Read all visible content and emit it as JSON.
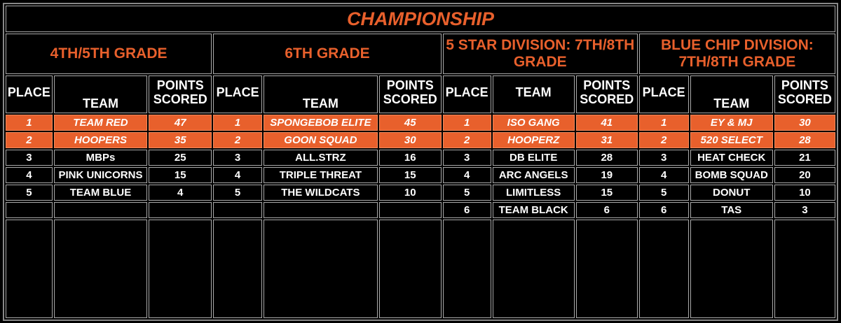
{
  "title": "CHAMPIONSHIP",
  "colors": {
    "accent": "#e8602c",
    "background": "#000000",
    "text": "#ffffff"
  },
  "headers": {
    "place": "PLACE",
    "team": "TEAM",
    "points_line1": "POINTS",
    "points_line2": "SCORED"
  },
  "divisions": [
    {
      "name": "4TH/5TH GRADE",
      "rows": [
        {
          "place": "1",
          "team": "TEAM RED",
          "points": "47"
        },
        {
          "place": "2",
          "team": "HOOPERS",
          "points": "35"
        },
        {
          "place": "3",
          "team": "MBPs",
          "points": "25"
        },
        {
          "place": "4",
          "team": "PINK UNICORNS",
          "points": "15"
        },
        {
          "place": "5",
          "team": "TEAM BLUE",
          "points": "4"
        }
      ]
    },
    {
      "name": "6TH GRADE",
      "rows": [
        {
          "place": "1",
          "team": "SPONGEBOB ELITE",
          "points": "45"
        },
        {
          "place": "2",
          "team": "GOON SQUAD",
          "points": "30"
        },
        {
          "place": "3",
          "team": "ALL.STRZ",
          "points": "16"
        },
        {
          "place": "4",
          "team": "TRIPLE THREAT",
          "points": "15"
        },
        {
          "place": "5",
          "team": "THE WILDCATS",
          "points": "10"
        }
      ]
    },
    {
      "name": "5 STAR DIVISION: 7TH/8TH GRADE",
      "rows": [
        {
          "place": "1",
          "team": "ISO GANG",
          "points": "41"
        },
        {
          "place": "2",
          "team": "HOOPERZ",
          "points": "31"
        },
        {
          "place": "3",
          "team": "DB ELITE",
          "points": "28"
        },
        {
          "place": "4",
          "team": "ARC ANGELS",
          "points": "19"
        },
        {
          "place": "5",
          "team": "LIMITLESS",
          "points": "15"
        },
        {
          "place": "6",
          "team": "TEAM BLACK",
          "points": "6"
        }
      ]
    },
    {
      "name": "BLUE CHIP DIVISION: 7TH/8TH GRADE",
      "rows": [
        {
          "place": "1",
          "team": "EY & MJ",
          "points": "30"
        },
        {
          "place": "2",
          "team": "520 SELECT",
          "points": "28"
        },
        {
          "place": "3",
          "team": "HEAT CHECK",
          "points": "21"
        },
        {
          "place": "4",
          "team": "BOMB SQUAD",
          "points": "20"
        },
        {
          "place": "5",
          "team": "DONUT",
          "points": "10"
        },
        {
          "place": "6",
          "team": "TAS",
          "points": "3"
        }
      ]
    }
  ]
}
